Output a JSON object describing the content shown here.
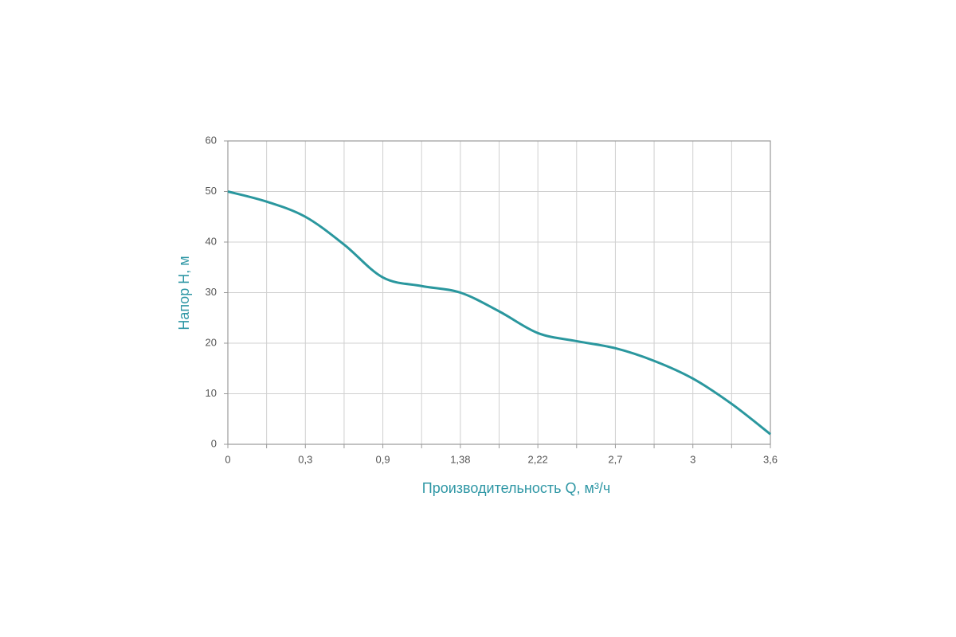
{
  "chart_data": {
    "type": "line",
    "x_label": "Производительность Q, м³/ч",
    "y_label": "Напор Н, м",
    "categories": [
      "0",
      null,
      "0,3",
      null,
      "0,9",
      null,
      "1,38",
      null,
      "2,22",
      null,
      "2,7",
      null,
      "3",
      null,
      "3,6"
    ],
    "series": [
      {
        "color": "#2a979e",
        "values": [
          50,
          48,
          45,
          39.5,
          33,
          31.3,
          30,
          26.3,
          22,
          20.4,
          19,
          16.5,
          13,
          8,
          2
        ]
      }
    ],
    "ylim": [
      0,
      60
    ],
    "yticks": [
      0,
      10,
      20,
      30,
      40,
      50,
      60
    ],
    "grid": true
  }
}
